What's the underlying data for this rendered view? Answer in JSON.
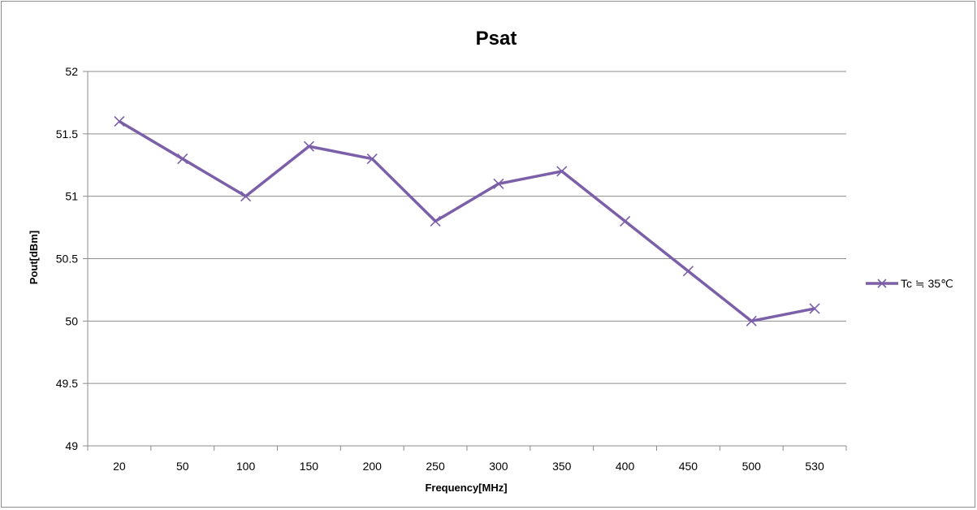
{
  "chart_data": {
    "type": "line",
    "title": "Psat",
    "xlabel": "Frequency[MHz]",
    "ylabel": "Pout[dBm]",
    "categories": [
      "20",
      "50",
      "100",
      "150",
      "200",
      "250",
      "300",
      "350",
      "400",
      "450",
      "500",
      "530"
    ],
    "series": [
      {
        "name": "Tc ≒ 35℃",
        "values": [
          51.6,
          51.3,
          51.0,
          51.4,
          51.3,
          50.8,
          51.1,
          51.2,
          50.8,
          50.4,
          50.0,
          50.1
        ],
        "color": "#7b5fa8",
        "marker": "x"
      }
    ],
    "ylim": [
      49,
      52
    ],
    "yticks": [
      "49",
      "49.5",
      "50",
      "50.5",
      "51",
      "51.5",
      "52"
    ],
    "grid": true,
    "legend_position": "right"
  },
  "colors": {
    "series": "#7b5fa8",
    "gridline": "#8c8c8c",
    "frame": "#8c8c8c"
  }
}
